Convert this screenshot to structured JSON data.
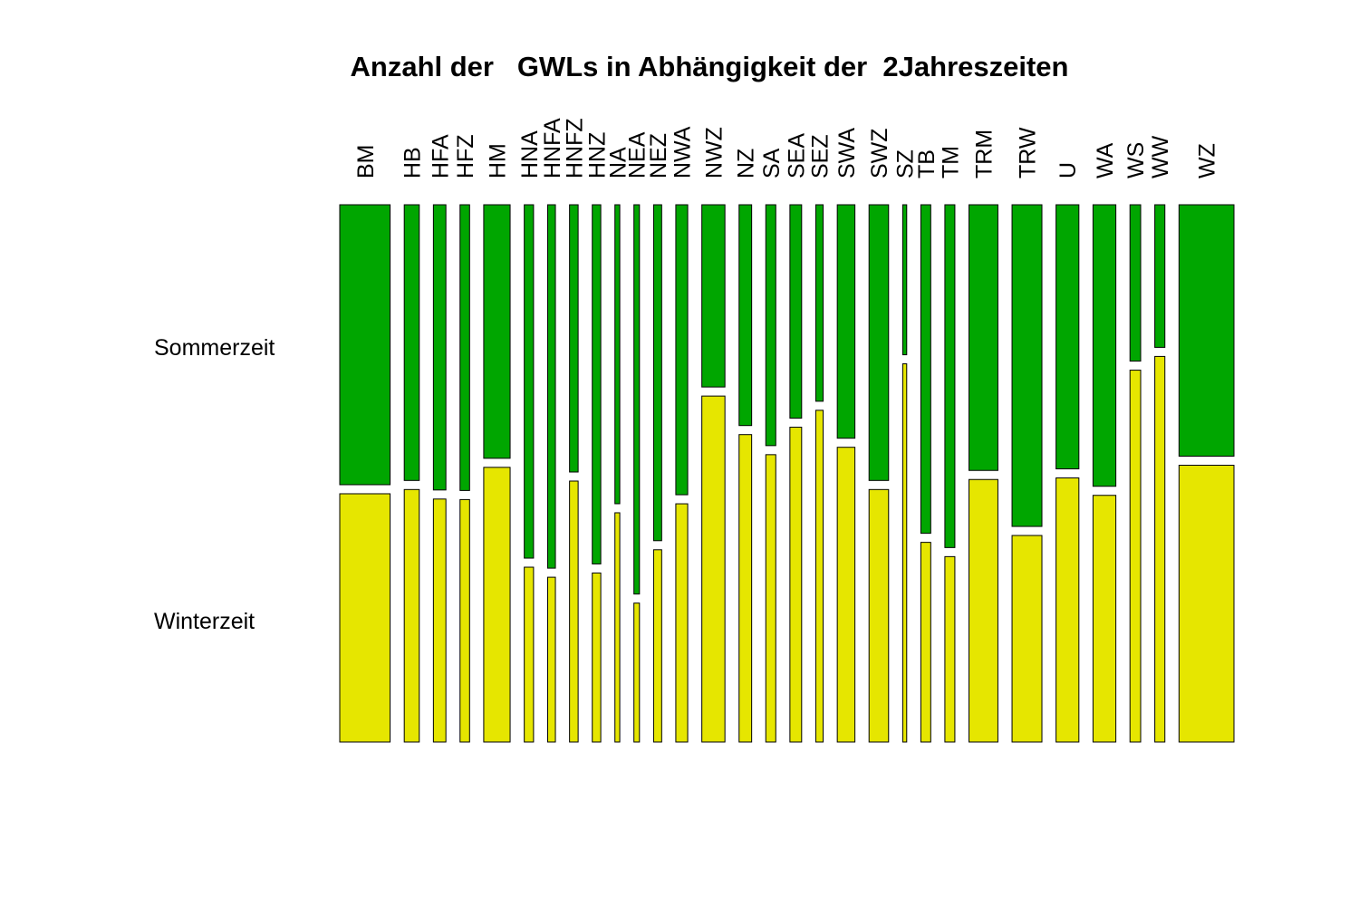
{
  "chart_data": {
    "type": "mosaic",
    "title": "Anzahl der   GWLs in Abhängigkeit der  2Jahreszeiten",
    "rows": [
      "Sommerzeit",
      "Winterzeit"
    ],
    "colors": {
      "Sommerzeit": "#00a600",
      "Winterzeit": "#e6e600"
    },
    "categories": [
      "BM",
      "HB",
      "HFA",
      "HFZ",
      "HM",
      "HNA",
      "HNFA",
      "HNFZ",
      "HNZ",
      "NA",
      "NEA",
      "NEZ",
      "NWA",
      "NWZ",
      "NZ",
      "SA",
      "SEA",
      "SEZ",
      "SWA",
      "SWZ",
      "SZ",
      "TB",
      "TM",
      "TRM",
      "TRW",
      "U",
      "WA",
      "WS",
      "WW",
      "WZ"
    ],
    "column_share": [
      0.058,
      0.0173,
      0.0144,
      0.011,
      0.0304,
      0.0107,
      0.0089,
      0.0099,
      0.0098,
      0.0056,
      0.0064,
      0.0093,
      0.0137,
      0.0266,
      0.0145,
      0.0115,
      0.0135,
      0.0085,
      0.0203,
      0.0225,
      0.0046,
      0.0114,
      0.0115,
      0.0333,
      0.0344,
      0.0263,
      0.0263,
      0.0123,
      0.0116,
      0.0633
    ],
    "sommer_fraction": [
      0.53,
      0.522,
      0.54,
      0.541,
      0.48,
      0.669,
      0.688,
      0.506,
      0.68,
      0.566,
      0.737,
      0.636,
      0.549,
      0.345,
      0.418,
      0.456,
      0.404,
      0.372,
      0.442,
      0.522,
      0.284,
      0.622,
      0.649,
      0.503,
      0.609,
      0.5,
      0.533,
      0.296,
      0.27,
      0.476
    ]
  }
}
